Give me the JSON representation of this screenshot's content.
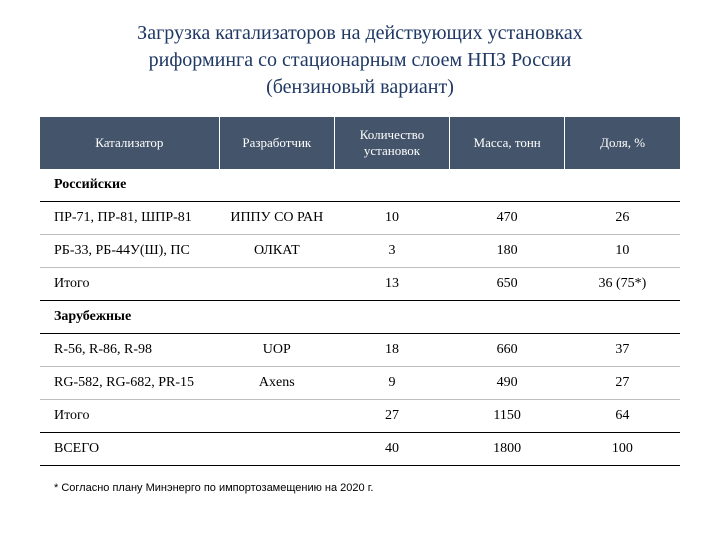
{
  "title_line1": "Загрузка катализаторов на действующих установках",
  "title_line2": "риформинга со стационарным слоем НПЗ России",
  "title_line3": "(бензиновый вариант)",
  "table": {
    "columns": [
      "Катализатор",
      "Разработчик",
      "Количество установок",
      "Масса, тонн",
      "Доля, %"
    ],
    "header_bg": "#44546a",
    "header_text_color": "#ffffff",
    "sections": [
      {
        "label": "Российские",
        "rows": [
          {
            "catalyst": "ПР-71, ПР-81, ШПР-81",
            "developer": "ИППУ СО РАН",
            "count": "10",
            "mass": "470",
            "share": "26"
          },
          {
            "catalyst": "РБ-33, РБ-44У(Ш), ПС",
            "developer": "ОЛКАТ",
            "count": "3",
            "mass": "180",
            "share": "10"
          }
        ],
        "subtotal": {
          "label": "Итого",
          "count": "13",
          "mass": "650",
          "share": "36 (75*)"
        }
      },
      {
        "label": "Зарубежные",
        "rows": [
          {
            "catalyst": "R-56, R-86, R-98",
            "developer": "UOP",
            "count": "18",
            "mass": "660",
            "share": "37"
          },
          {
            "catalyst": "RG-582, RG-682, PR-15",
            "developer": "Axens",
            "count": "9",
            "mass": "490",
            "share": "27"
          }
        ],
        "subtotal": {
          "label": "Итого",
          "count": "27",
          "mass": "1150",
          "share": "64"
        }
      }
    ],
    "total": {
      "label": "ВСЕГО",
      "count": "40",
      "mass": "1800",
      "share": "100"
    }
  },
  "footnote": "* Согласно плану Минэнерго по импортозамещению на 2020 г."
}
